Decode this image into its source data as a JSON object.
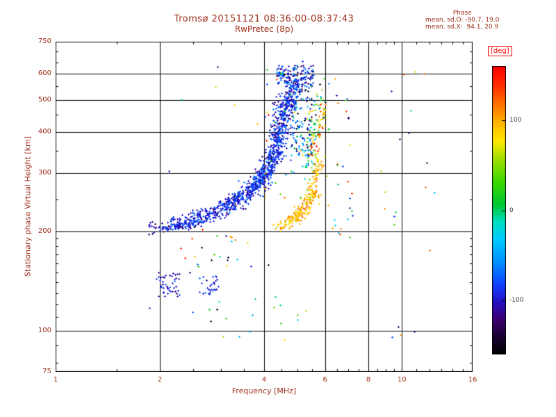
{
  "title": "Tromsø 20151121 08:36:00-08:37:43",
  "subtitle": "RwPretec (8p)",
  "stats": {
    "heading": "Phase",
    "line_o": "mean, sd,O: -90.7, 19.0",
    "line_x": "mean, sd,X:  94.1, 20.9"
  },
  "colors": {
    "text": "#9e2e1b",
    "frame": "#000000",
    "deg_label": "#ff0000",
    "cb_text": "#333333"
  },
  "chart_data": {
    "type": "scatter",
    "title": "Tromsø 20151121 08:36:00-08:37:43",
    "subtitle": "RwPretec (8p)",
    "xlabel": "Frequency [MHz]",
    "ylabel": "Stationary phase Virtual Height [km]",
    "x_scale": "log",
    "x_range": [
      1,
      16
    ],
    "x_ticks": [
      1,
      2,
      4,
      6,
      8,
      10,
      16
    ],
    "x_gridlines": [
      2,
      4,
      6,
      8,
      10
    ],
    "x_minor_ticks": [
      1.5,
      2.5,
      3,
      3.5,
      4.5,
      5,
      5.5,
      6.5,
      7,
      7.5,
      8.5,
      9,
      9.5,
      11,
      12,
      13,
      14,
      15
    ],
    "y_scale": "log",
    "y_range": [
      75,
      750
    ],
    "y_ticks": [
      75,
      100,
      200,
      300,
      400,
      500,
      600,
      750
    ],
    "y_gridlines": [
      100,
      200,
      300,
      400,
      500,
      600
    ],
    "y_minor_ticks": [
      80,
      90,
      110,
      120,
      130,
      140,
      150,
      160,
      170,
      180,
      190,
      250,
      350,
      450,
      550,
      650,
      700
    ],
    "series_stats": {
      "O_mode": {
        "mean_phase_deg": -90.7,
        "sd_deg": 19.0
      },
      "X_mode": {
        "mean_phase_deg": 94.1,
        "sd_deg": 20.9
      }
    },
    "colorbar": {
      "label": "[deg]",
      "range": [
        -160,
        160
      ],
      "ticks": [
        100,
        0,
        -100
      ],
      "stops": [
        [
          0.0,
          "#000000"
        ],
        [
          0.06,
          "#1a0030"
        ],
        [
          0.12,
          "#3c0070"
        ],
        [
          0.18,
          "#2410c0"
        ],
        [
          0.24,
          "#1040ff"
        ],
        [
          0.32,
          "#0090ff"
        ],
        [
          0.4,
          "#00ccff"
        ],
        [
          0.46,
          "#00e0c0"
        ],
        [
          0.52,
          "#00c830"
        ],
        [
          0.6,
          "#40d800"
        ],
        [
          0.68,
          "#a0e000"
        ],
        [
          0.74,
          "#ffe800"
        ],
        [
          0.8,
          "#ffb800"
        ],
        [
          0.87,
          "#ff7000"
        ],
        [
          0.93,
          "#ff3000"
        ],
        [
          1.0,
          "#ff0000"
        ]
      ]
    },
    "clusters": [
      {
        "kind": "band",
        "f": [
          2.02,
          2.65
        ],
        "h": [
          204,
          214
        ],
        "n": 130,
        "phase": -91,
        "sd": 16,
        "fj": 0.012,
        "hj": 0.006
      },
      {
        "kind": "band",
        "f": [
          2.15,
          3.0
        ],
        "h": [
          214,
          224
        ],
        "n": 70,
        "phase": -91,
        "sd": 16,
        "fj": 0.015,
        "hj": 0.006
      },
      {
        "kind": "band",
        "f": [
          2.55,
          3.35
        ],
        "h": [
          224,
          241
        ],
        "n": 95,
        "phase": -91,
        "sd": 16,
        "fj": 0.015,
        "hj": 0.007
      },
      {
        "kind": "band",
        "f": [
          2.85,
          3.7
        ],
        "h": [
          234,
          260
        ],
        "n": 95,
        "phase": -91,
        "sd": 16,
        "fj": 0.015,
        "hj": 0.008
      },
      {
        "kind": "band",
        "f": [
          3.15,
          4.0
        ],
        "h": [
          248,
          283
        ],
        "n": 110,
        "phase": -91,
        "sd": 16,
        "fj": 0.015,
        "hj": 0.008
      },
      {
        "kind": "band",
        "f": [
          3.55,
          4.2
        ],
        "h": [
          262,
          308
        ],
        "n": 110,
        "phase": -91,
        "sd": 16,
        "fj": 0.013,
        "hj": 0.009
      },
      {
        "kind": "band",
        "f": [
          3.85,
          4.5
        ],
        "h": [
          288,
          352
        ],
        "n": 130,
        "phase": -91,
        "sd": 16,
        "fj": 0.012,
        "hj": 0.01
      },
      {
        "kind": "band",
        "f": [
          4.05,
          4.65
        ],
        "h": [
          318,
          425
        ],
        "n": 150,
        "phase": -91,
        "sd": 18,
        "fj": 0.013,
        "hj": 0.012
      },
      {
        "kind": "band",
        "f": [
          4.25,
          4.85
        ],
        "h": [
          378,
          502
        ],
        "n": 150,
        "phase": -91,
        "sd": 18,
        "fj": 0.013,
        "hj": 0.012
      },
      {
        "kind": "band",
        "f": [
          4.4,
          5.05
        ],
        "h": [
          448,
          575
        ],
        "n": 140,
        "phase": -93,
        "sd": 18,
        "fj": 0.013,
        "hj": 0.01
      },
      {
        "kind": "blob",
        "f": [
          4.35,
          5.55
        ],
        "h": [
          548,
          638
        ],
        "n": 150,
        "phase": -95,
        "sd": 25
      },
      {
        "kind": "blob",
        "f": [
          4.75,
          5.5
        ],
        "h": [
          340,
          560
        ],
        "n": 110,
        "phase": -70,
        "sd": 45
      },
      {
        "kind": "band",
        "f": [
          5.25,
          5.8
        ],
        "h": [
          300,
          530
        ],
        "n": 80,
        "phase": 0,
        "sd": 60,
        "fj": 0.01,
        "hj": 0.02
      },
      {
        "kind": "band",
        "f": [
          4.5,
          5.2
        ],
        "h": [
          206,
          228
        ],
        "n": 85,
        "phase": 94,
        "sd": 15,
        "fj": 0.012,
        "hj": 0.006
      },
      {
        "kind": "band",
        "f": [
          4.95,
          5.6
        ],
        "h": [
          222,
          262
        ],
        "n": 85,
        "phase": 94,
        "sd": 15,
        "fj": 0.01,
        "hj": 0.007
      },
      {
        "kind": "band",
        "f": [
          5.35,
          5.85
        ],
        "h": [
          252,
          330
        ],
        "n": 70,
        "phase": 96,
        "sd": 15,
        "fj": 0.008,
        "hj": 0.009
      },
      {
        "kind": "band",
        "f": [
          5.5,
          5.95
        ],
        "h": [
          320,
          478
        ],
        "n": 50,
        "phase": 100,
        "sd": 30,
        "fj": 0.008,
        "hj": 0.014
      },
      {
        "kind": "blob",
        "f": [
          1.95,
          2.28
        ],
        "h": [
          127,
          150
        ],
        "n": 45,
        "phase": -95,
        "sd": 15
      },
      {
        "kind": "blob",
        "f": [
          2.6,
          2.95
        ],
        "h": [
          129,
          147
        ],
        "n": 28,
        "phase": -95,
        "sd": 15
      },
      {
        "kind": "blob",
        "f": [
          1.82,
          2.05
        ],
        "h": [
          196,
          214
        ],
        "n": 14,
        "phase": -100,
        "sd": 15
      },
      {
        "kind": "blob",
        "f": [
          2.35,
          3.6
        ],
        "h": [
          148,
          196
        ],
        "n": 18,
        "phase": null,
        "sd": 0
      },
      {
        "kind": "blob",
        "f": [
          5.9,
          7.3
        ],
        "h": [
          178,
          520
        ],
        "n": 26,
        "phase": null,
        "sd": 0
      },
      {
        "kind": "blob",
        "f": [
          8.4,
          12.6
        ],
        "h": [
          88,
          620
        ],
        "n": 13,
        "phase": null,
        "sd": 0
      },
      {
        "kind": "blob",
        "f": [
          2.8,
          4.6
        ],
        "h": [
          92,
          132
        ],
        "n": 9,
        "phase": null,
        "sd": 0
      },
      {
        "kind": "blob",
        "f": [
          2.0,
          6.2
        ],
        "h": [
          95,
          640
        ],
        "n": 22,
        "phase": null,
        "sd": 0
      },
      {
        "kind": "blob",
        "f": [
          4.0,
          5.6
        ],
        "h": [
          250,
          620
        ],
        "n": 35,
        "phase": null,
        "sd": 0
      }
    ],
    "points": [
      [
        11.6,
        600,
        130
      ],
      [
        10.9,
        608,
        85
      ],
      [
        12.4,
        262,
        -45
      ],
      [
        11.7,
        272,
        120
      ],
      [
        9.3,
        532,
        -95
      ],
      [
        8.7,
        305,
        60
      ],
      [
        6.3,
        205,
        110
      ],
      [
        6.62,
        196,
        125
      ],
      [
        6.9,
        462,
        130
      ],
      [
        6.5,
        318,
        10
      ],
      [
        7.05,
        252,
        -90
      ],
      [
        2.47,
        190,
        130
      ],
      [
        2.52,
        168,
        95
      ],
      [
        2.78,
        116,
        15
      ],
      [
        1.87,
        117,
        -95
      ],
      [
        3.05,
        96,
        60
      ],
      [
        5.0,
        108,
        -30
      ],
      [
        3.3,
        188,
        120
      ],
      [
        2.3,
        178,
        140
      ],
      [
        9.9,
        97,
        100
      ],
      [
        10.6,
        465,
        0
      ],
      [
        2.65,
        203,
        155
      ],
      [
        6.15,
        560,
        -60
      ],
      [
        6.4,
        580,
        100
      ],
      [
        5.15,
        655,
        -90
      ]
    ]
  }
}
